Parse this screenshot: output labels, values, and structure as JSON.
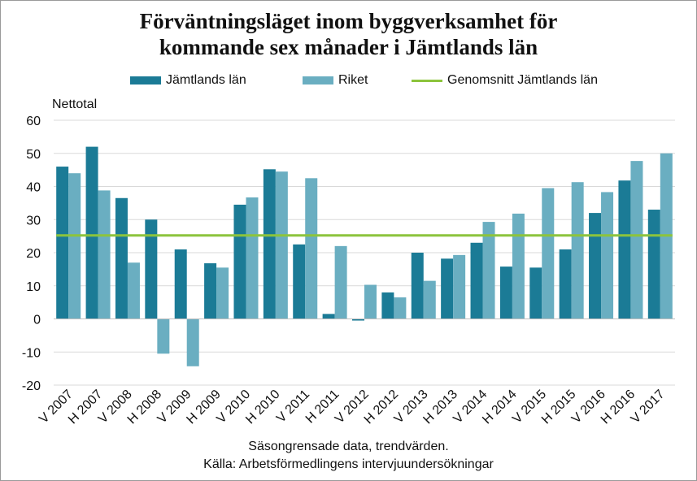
{
  "chart_data": {
    "type": "bar",
    "title_line1": "Förväntningsläget inom byggverksamhet för",
    "title_line2": "kommande sex månader i Jämtlands län",
    "ylabel": "Nettotal",
    "ylim": [
      -20,
      60
    ],
    "yticks": [
      -20,
      -10,
      0,
      10,
      20,
      30,
      40,
      50,
      60
    ],
    "grid": true,
    "legend_position": "top",
    "categories": [
      "V 2007",
      "H 2007",
      "V 2008",
      "H 2008",
      "V 2009",
      "H 2009",
      "V 2010",
      "H 2010",
      "V 2011",
      "H 2011",
      "V 2012",
      "H 2012",
      "V 2013",
      "H 2013",
      "V 2014",
      "H 2014",
      "V 2015",
      "H 2015",
      "V 2016",
      "H 2016",
      "V 2017"
    ],
    "series": [
      {
        "name": "Jämtlands län",
        "color": "#1b7b96",
        "values": [
          46,
          52,
          36.5,
          30,
          21,
          16.8,
          34.5,
          45.2,
          22.5,
          1.5,
          -0.5,
          8,
          20,
          18.2,
          23,
          15.8,
          15.5,
          21,
          32,
          41.8,
          33
        ]
      },
      {
        "name": "Riket",
        "color": "#6aaec1",
        "values": [
          44,
          38.8,
          17,
          -10.5,
          -14.3,
          15.5,
          36.7,
          44.5,
          42.5,
          22,
          10.3,
          6.5,
          11.5,
          19.3,
          29.3,
          31.8,
          39.5,
          41.3,
          38.3,
          47.7,
          50
        ]
      }
    ],
    "average_line": {
      "name": "Genomsnitt Jämtlands län",
      "color": "#8cc43c",
      "value": 25.2
    },
    "footnote1": "Säsongrensade data, trendvärden.",
    "footnote2": "Källa: Arbetsförmedlingens  intervjuundersökningar"
  }
}
